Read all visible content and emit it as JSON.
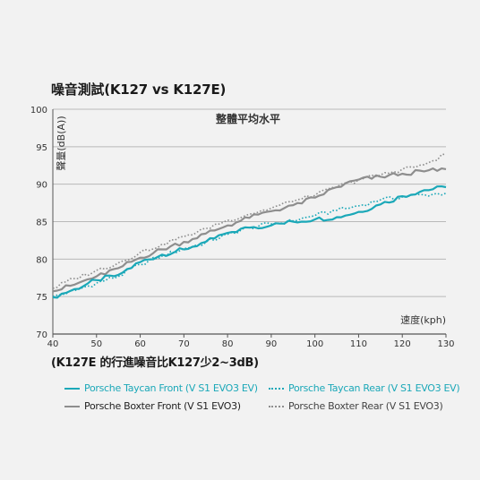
{
  "title": "噪音測試(K127 vs K127E)",
  "note": "(K127E 的行進噪音比K127少2~3dB)",
  "chart_data": {
    "type": "line",
    "title": "噪音測試(K127 vs K127E)",
    "subtitle": "整體平均水平",
    "xlabel": "速度(kph)",
    "ylabel": "聲量(dB(A))",
    "xlim": [
      40,
      130
    ],
    "ylim": [
      70,
      100
    ],
    "xticks": [
      40,
      50,
      60,
      70,
      80,
      90,
      100,
      110,
      120,
      130
    ],
    "yticks": [
      70,
      75,
      80,
      85,
      90,
      95,
      100
    ],
    "grid": "horizontal",
    "legend_position": "bottom",
    "x": [
      40,
      45,
      50,
      55,
      60,
      65,
      70,
      75,
      80,
      85,
      90,
      95,
      100,
      105,
      110,
      115,
      120,
      125,
      130
    ],
    "series": [
      {
        "name": "Porsche Taycan Front (V S1 EVO3 EV)",
        "color": "#1ba8b8",
        "style": "solid",
        "values": [
          74.9,
          76.0,
          77.2,
          77.9,
          79.6,
          80.6,
          81.3,
          82.3,
          83.5,
          84.2,
          84.5,
          85.0,
          85.3,
          85.6,
          86.3,
          87.3,
          88.4,
          89.2,
          89.6
        ]
      },
      {
        "name": "Porsche Taycan Rear (V S1 EVO3 EV)",
        "color": "#1ba8b8",
        "style": "dotted",
        "values": [
          75.0,
          75.8,
          76.8,
          77.7,
          79.3,
          80.4,
          81.4,
          82.2,
          83.3,
          84.2,
          84.7,
          85.1,
          85.8,
          86.5,
          87.1,
          87.9,
          88.3,
          88.6,
          88.8
        ]
      },
      {
        "name": "Porsche Boxter Front (V S1 EVO3)",
        "color": "#8e8e8e",
        "style": "solid",
        "values": [
          75.7,
          76.6,
          77.7,
          78.8,
          80.2,
          81.3,
          82.3,
          83.4,
          84.5,
          85.5,
          86.4,
          87.2,
          88.2,
          89.6,
          90.6,
          91.0,
          91.4,
          91.7,
          92.0
        ]
      },
      {
        "name": "Porsche Boxter Rear (V S1 EVO3)",
        "color": "#8e8e8e",
        "style": "dotted",
        "values": [
          76.1,
          77.4,
          78.5,
          79.5,
          80.9,
          82.0,
          83.0,
          84.1,
          85.2,
          86.0,
          86.8,
          87.7,
          88.5,
          89.6,
          90.6,
          91.2,
          92.0,
          92.6,
          94.0
        ]
      }
    ]
  }
}
